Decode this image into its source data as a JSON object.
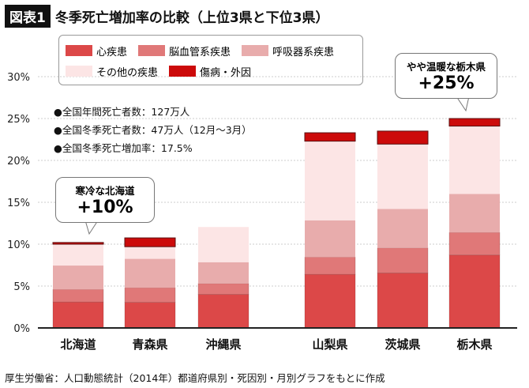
{
  "figure_label": "図表1",
  "title": "冬季死亡増加率の比較（上位3県と下位3県）",
  "notes": [
    "●全国年間死亡者数：127万人",
    "●全国冬季死亡者数：47万人（12月〜3月）",
    "●全国冬季死亡増加率：17.5%"
  ],
  "callouts": [
    {
      "label": "寒冷な北海道",
      "value": "+10%"
    },
    {
      "label": "やや温暖な栃木県",
      "value": "+25%"
    }
  ],
  "footer": "厚生労働省：人口動態統計（2014年）都道府県別・死因別・月別グラフをもとに作成",
  "chart_data": {
    "type": "bar",
    "stacked": true,
    "categories": [
      "北海道",
      "青森県",
      "沖縄県",
      "山梨県",
      "茨城県",
      "栃木県"
    ],
    "series": [
      {
        "name": "心疾患",
        "color": "#dc4848",
        "values": [
          3.1,
          3.05,
          4.0,
          6.4,
          6.55,
          8.7
        ]
      },
      {
        "name": "脳血管系疾患",
        "color": "#e07878",
        "values": [
          1.5,
          1.75,
          1.3,
          2.05,
          3.0,
          2.7
        ]
      },
      {
        "name": "呼吸器系疾患",
        "color": "#e8acac",
        "values": [
          2.85,
          3.45,
          2.55,
          4.4,
          4.65,
          4.6
        ]
      },
      {
        "name": "その他の疾患",
        "color": "#fce5e5",
        "values": [
          2.55,
          1.45,
          4.2,
          9.45,
          7.75,
          8.1
        ]
      },
      {
        "name": "傷病・外因",
        "color": "#cc0a0a",
        "values": [
          0.2,
          1.05,
          0,
          1.0,
          1.55,
          0.9
        ]
      }
    ],
    "yticks": [
      "0%",
      "5%",
      "10%",
      "15%",
      "20%",
      "25%",
      "30%"
    ],
    "ylim": [
      0,
      30
    ],
    "grid": true,
    "legend": "top"
  }
}
